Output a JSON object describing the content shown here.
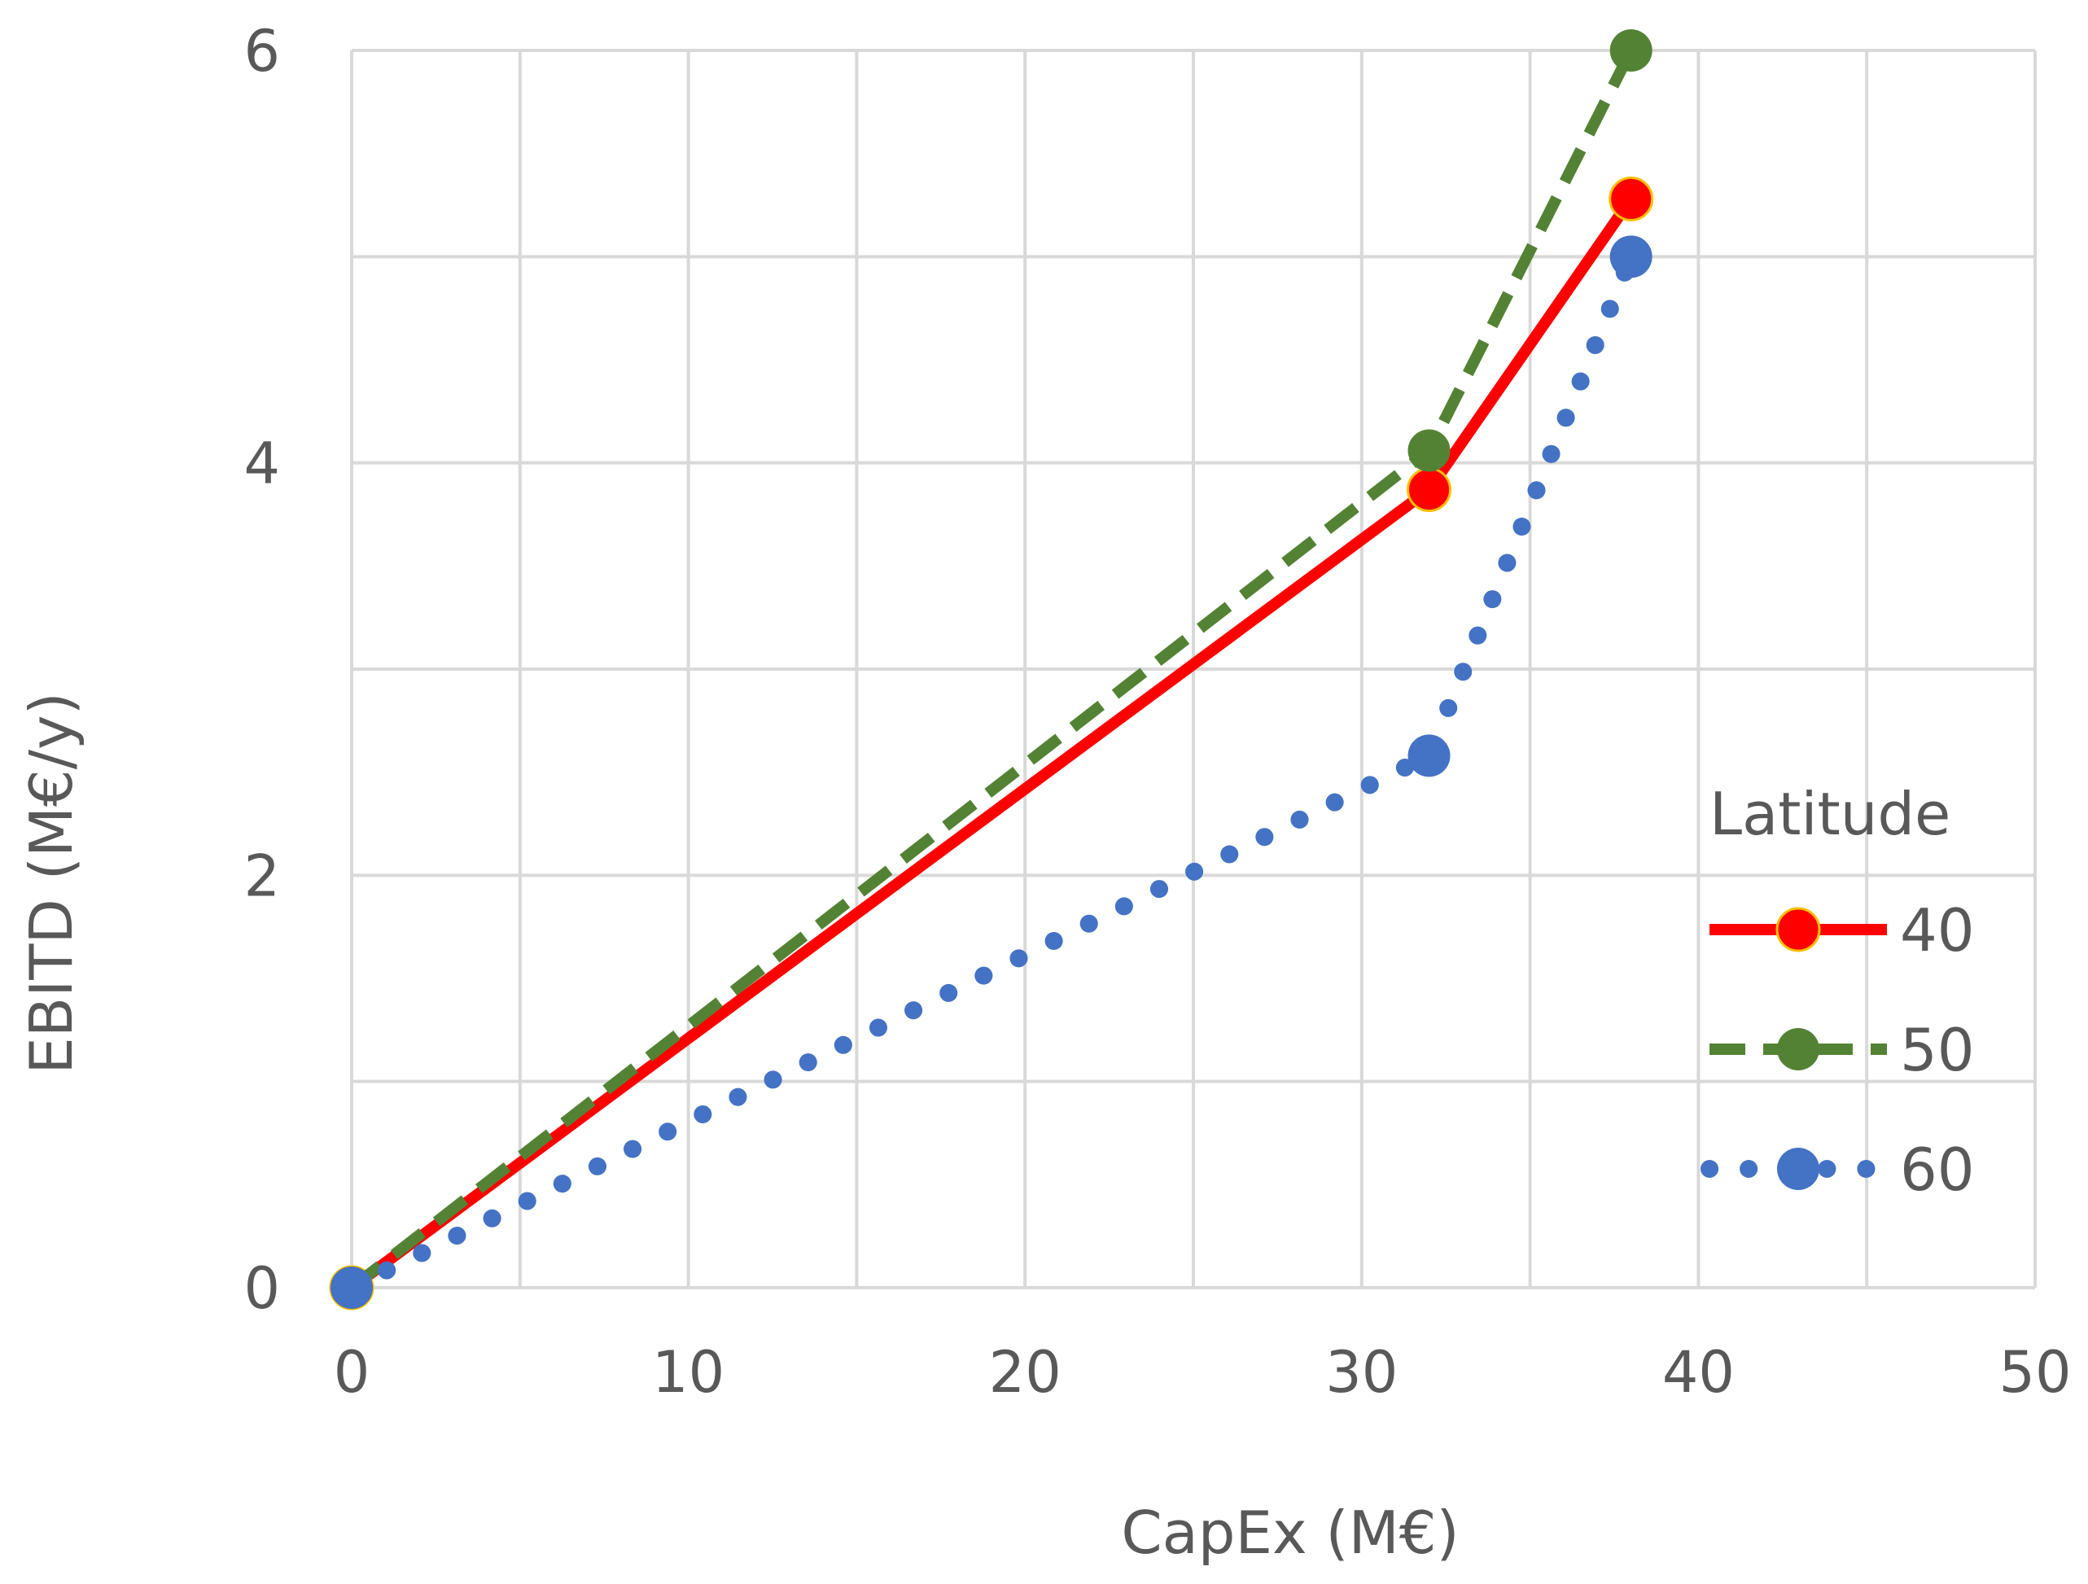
{
  "chart_data": {
    "type": "line",
    "title": "",
    "xlabel": "CapEx (M€)",
    "ylabel": "EBITD (M€/y)",
    "xlim": [
      0,
      50
    ],
    "ylim": [
      0,
      6
    ],
    "x_ticks": [
      0,
      10,
      20,
      30,
      40,
      50
    ],
    "y_ticks": [
      0,
      2,
      4,
      6
    ],
    "x_grid_step": 5,
    "y_grid_step": 1,
    "grid": true,
    "legend": {
      "title": "Latitude",
      "placement": "right"
    },
    "series": [
      {
        "name": "40",
        "color": "#ff0000",
        "line_style": "solid",
        "marker_color": "#ff0000",
        "points": [
          [
            0,
            0
          ],
          [
            32,
            3.87
          ],
          [
            38,
            5.28
          ]
        ]
      },
      {
        "name": "50",
        "color": "#548235",
        "line_style": "dashed",
        "marker_color": "#548235",
        "points": [
          [
            0,
            0
          ],
          [
            32,
            4.06
          ],
          [
            38,
            6.0
          ]
        ]
      },
      {
        "name": "60",
        "color": "#4472c4",
        "line_style": "dotted",
        "marker_color": "#4472c4",
        "points": [
          [
            0,
            0
          ],
          [
            32,
            2.58
          ],
          [
            38,
            5.0
          ]
        ]
      }
    ]
  }
}
